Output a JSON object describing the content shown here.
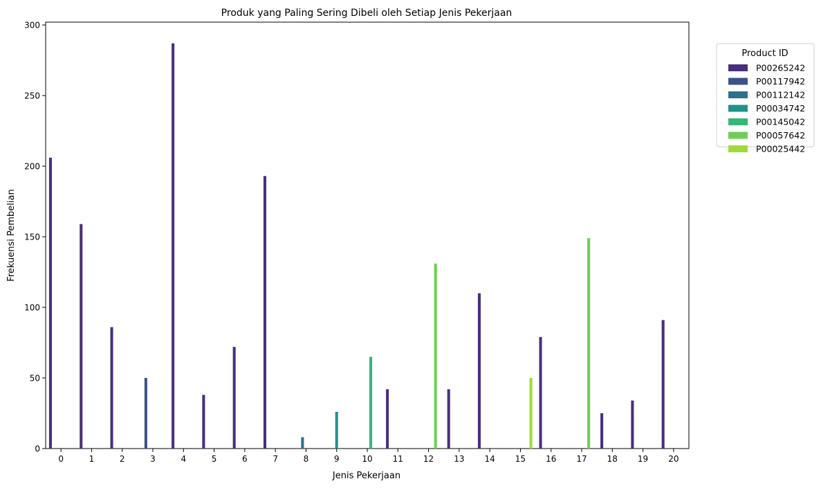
{
  "chart_data": {
    "type": "bar",
    "title": "Produk yang Paling Sering Dibeli oleh Setiap Jenis Pekerjaan",
    "xlabel": "Jenis Pekerjaan",
    "ylabel": "Frekuensi Pembelian",
    "categories": [
      "0",
      "1",
      "2",
      "3",
      "4",
      "5",
      "6",
      "7",
      "8",
      "9",
      "10",
      "11",
      "12",
      "13",
      "14",
      "15",
      "16",
      "17",
      "18",
      "19",
      "20"
    ],
    "ylim": [
      0,
      302
    ],
    "yticks": [
      0,
      50,
      100,
      150,
      200,
      250,
      300
    ],
    "grid": false,
    "legend": {
      "title": "Product ID",
      "placement": "outside-top-right"
    },
    "series": [
      {
        "name": "P00265242",
        "color": "#472f7d",
        "values": [
          206,
          159,
          86,
          null,
          287,
          38,
          72,
          193,
          null,
          null,
          null,
          42,
          null,
          42,
          110,
          null,
          79,
          null,
          25,
          34,
          91
        ]
      },
      {
        "name": "P00117942",
        "color": "#3b528b",
        "values": [
          null,
          null,
          null,
          50,
          null,
          null,
          null,
          null,
          null,
          null,
          null,
          null,
          null,
          null,
          null,
          null,
          null,
          null,
          null,
          null,
          null
        ]
      },
      {
        "name": "P00112142",
        "color": "#2c728e",
        "values": [
          null,
          null,
          null,
          null,
          null,
          null,
          null,
          null,
          8,
          null,
          null,
          null,
          null,
          null,
          null,
          null,
          null,
          null,
          null,
          null,
          null
        ]
      },
      {
        "name": "P00034742",
        "color": "#21918c",
        "values": [
          null,
          null,
          null,
          null,
          null,
          null,
          null,
          null,
          null,
          26,
          null,
          null,
          null,
          null,
          null,
          null,
          null,
          null,
          null,
          null,
          null
        ]
      },
      {
        "name": "P00145042",
        "color": "#35b779",
        "values": [
          null,
          null,
          null,
          null,
          null,
          null,
          null,
          null,
          null,
          null,
          65,
          null,
          null,
          null,
          null,
          null,
          null,
          null,
          null,
          null,
          null
        ]
      },
      {
        "name": "P00057642",
        "color": "#6ece58",
        "values": [
          null,
          null,
          null,
          null,
          null,
          null,
          null,
          null,
          null,
          null,
          null,
          null,
          131,
          null,
          null,
          null,
          null,
          149,
          null,
          null,
          null
        ]
      },
      {
        "name": "P00025442",
        "color": "#a0da39",
        "values": [
          null,
          null,
          null,
          null,
          null,
          null,
          null,
          null,
          null,
          null,
          null,
          null,
          null,
          null,
          null,
          50,
          null,
          null,
          null,
          null,
          null
        ]
      }
    ]
  }
}
